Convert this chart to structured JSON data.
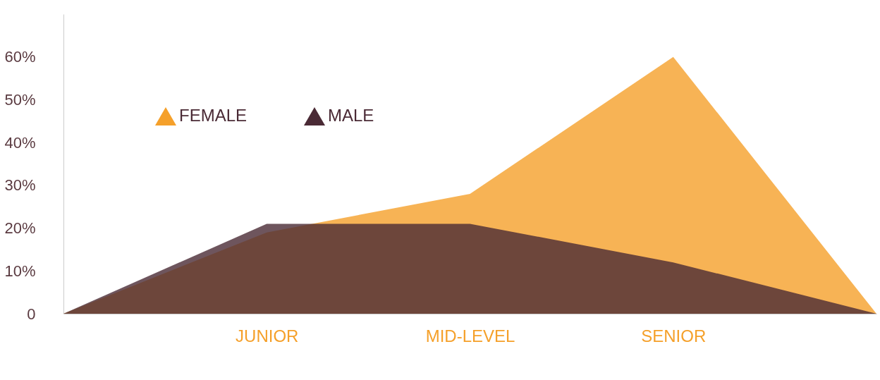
{
  "chart_data": {
    "type": "area",
    "categories": [
      null,
      "JUNIOR",
      "MID-LEVEL",
      "SENIOR",
      null
    ],
    "series": [
      {
        "name": "FEMALE",
        "color": "#f5a02a",
        "values": [
          0,
          19,
          28,
          60,
          0
        ]
      },
      {
        "name": "MALE",
        "color": "#4a2a35",
        "values": [
          0,
          21,
          21,
          12,
          0
        ]
      }
    ],
    "ylim": [
      0,
      70
    ],
    "yticks": [
      0,
      {
        "value": 10,
        "label": "10%"
      },
      {
        "value": 20,
        "label": "20%"
      },
      {
        "value": 30,
        "label": "30%"
      },
      {
        "value": 40,
        "label": "40%"
      },
      {
        "value": 50,
        "label": "50%"
      },
      {
        "value": 60,
        "label": "60%"
      }
    ],
    "grid": false,
    "legend": "top left"
  }
}
